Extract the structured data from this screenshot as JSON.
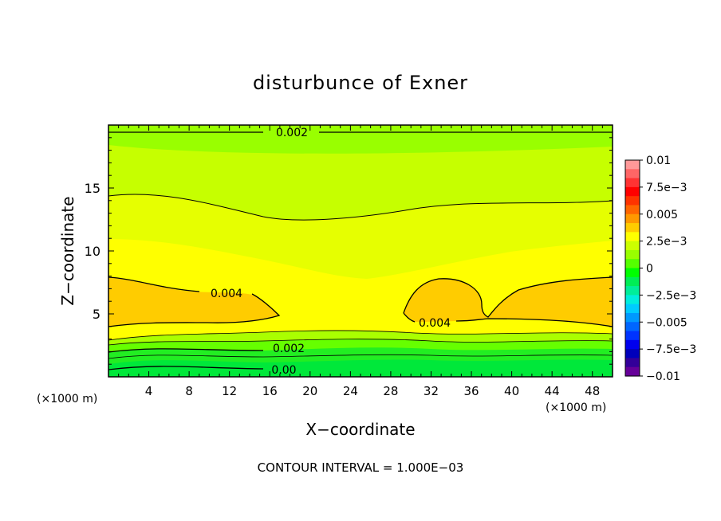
{
  "chart_data": {
    "type": "heatmap",
    "subtype": "filled-contour",
    "title": "disturbunce of Exner",
    "xlabel": "X−coordinate",
    "ylabel": "Z−coordinate",
    "x_units_left": "(×1000 m)",
    "x_units_right": "(×1000 m)",
    "footnote": "CONTOUR INTERVAL = 1.000E−03",
    "xlim": [
      0,
      50
    ],
    "ylim": [
      0,
      20
    ],
    "x_ticks": [
      4,
      8,
      12,
      16,
      20,
      24,
      28,
      32,
      36,
      40,
      44,
      48
    ],
    "x_tick_labels": [
      "4",
      "8",
      "12",
      "16",
      "20",
      "24",
      "28",
      "32",
      "36",
      "40",
      "44",
      "48"
    ],
    "y_ticks": [
      5,
      10,
      15
    ],
    "y_tick_labels": [
      "5",
      "10",
      "15"
    ],
    "grid": false,
    "contour_interval": 0.001,
    "contour_labels": [
      {
        "text": "0.002",
        "x": 18.5,
        "z": 19.4
      },
      {
        "text": "0.004",
        "x": 11.8,
        "z": 6.7
      },
      {
        "text": "0.004",
        "x": 32.8,
        "z": 4.3
      },
      {
        "text": "0.002",
        "x": 17.6,
        "z": 2.3
      },
      {
        "text": "0.00",
        "x": 17.6,
        "z": 0.5
      }
    ],
    "filled_regions": [
      {
        "range": "0.0015–0.002",
        "color": "#99ff00",
        "z_from": 18.6,
        "z_to": 20
      },
      {
        "range": "0.002–0.0025",
        "color": "#c6ff00",
        "z_from": 13.7,
        "z_to": 18.6
      },
      {
        "range": "0.0025–0.003",
        "color": "#e6ff00",
        "z_from": 10.2,
        "z_to": 13.7
      },
      {
        "range": "0.003–0.0035",
        "color": "#ffff00",
        "z_from": 4.2,
        "z_to": 10.2
      },
      {
        "range": "0.0035–0.004",
        "color": "#ffcc00",
        "note": "lobes near x 0–17 and x 29–50, z 4–8"
      },
      {
        "range": "0–0.003",
        "color": "#00e83a",
        "z_from": 0,
        "z_to": 3.4,
        "note": "banded green layers near ground"
      }
    ],
    "colorbar": {
      "labels": [
        "0.01",
        "7.5e−3",
        "0.005",
        "2.5e−3",
        "0",
        "−2.5e−3",
        "−0.005",
        "−7.5e−3",
        "−0.01"
      ],
      "values": [
        0.01,
        0.0075,
        0.005,
        0.0025,
        0,
        -0.0025,
        -0.005,
        -0.0075,
        -0.01
      ],
      "colors": [
        "#ff9999",
        "#ff6666",
        "#ff3333",
        "#ff0000",
        "#ff3300",
        "#ff6600",
        "#ff9900",
        "#ffcc00",
        "#ffff00",
        "#ccff00",
        "#99ff00",
        "#55ff00",
        "#00ff00",
        "#00ee55",
        "#00ee99",
        "#00eedd",
        "#00ccff",
        "#0099ff",
        "#0066ff",
        "#0033ff",
        "#0000ee",
        "#0000bb",
        "#330099",
        "#660099"
      ]
    }
  }
}
